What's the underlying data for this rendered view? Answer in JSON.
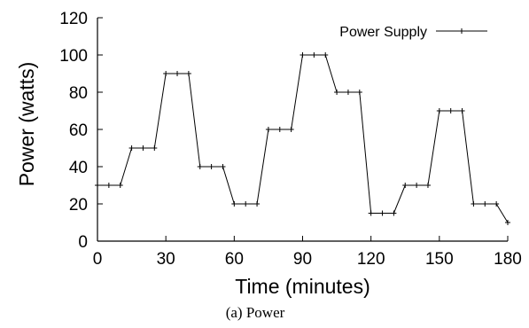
{
  "chart_data": {
    "type": "line",
    "xlabel": "Time (minutes)",
    "ylabel": "Power (watts)",
    "caption": "(a) Power",
    "xlim": [
      0,
      180
    ],
    "ylim": [
      0,
      120
    ],
    "xticks": [
      "0",
      "30",
      "60",
      "90",
      "120",
      "150",
      "180"
    ],
    "yticks": [
      "0",
      "20",
      "40",
      "60",
      "80",
      "100",
      "120"
    ],
    "xtick_values": [
      0,
      30,
      60,
      90,
      120,
      150,
      180
    ],
    "ytick_values": [
      0,
      20,
      40,
      60,
      80,
      100,
      120
    ],
    "grid": false,
    "legend_position": "top-right",
    "series": [
      {
        "name": "Power Supply",
        "color": "#000000",
        "marker": "plus",
        "x": [
          0,
          5,
          10,
          15,
          20,
          25,
          30,
          35,
          40,
          45,
          50,
          55,
          60,
          65,
          70,
          75,
          80,
          85,
          90,
          95,
          100,
          105,
          110,
          115,
          120,
          125,
          130,
          135,
          140,
          145,
          150,
          155,
          160,
          165,
          170,
          175,
          180
        ],
        "y": [
          30,
          30,
          30,
          50,
          50,
          50,
          90,
          90,
          90,
          40,
          40,
          40,
          20,
          20,
          20,
          60,
          60,
          60,
          100,
          100,
          100,
          80,
          80,
          80,
          15,
          15,
          15,
          30,
          30,
          30,
          70,
          70,
          70,
          20,
          20,
          20,
          10
        ]
      }
    ]
  }
}
